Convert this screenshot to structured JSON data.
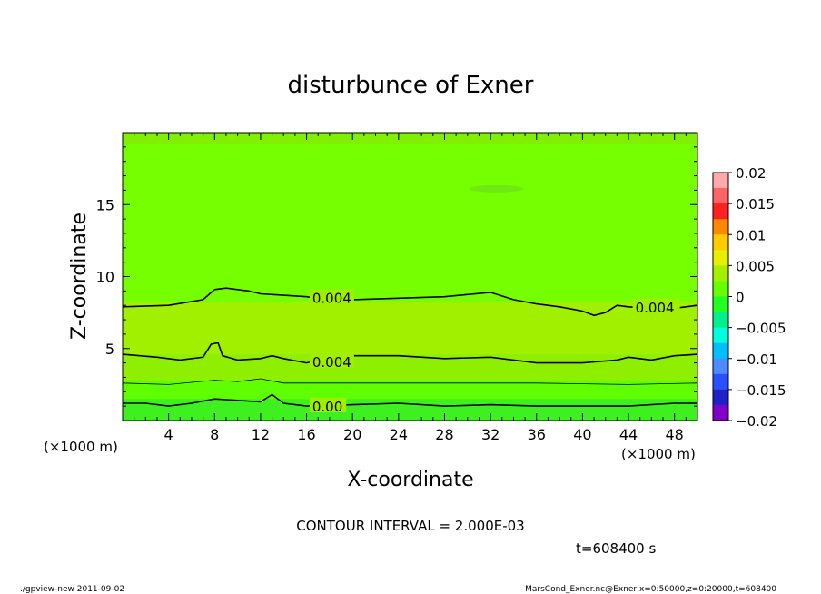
{
  "chart_data": {
    "type": "contour",
    "title": "disturbunce of Exner",
    "xlabel": "X-coordinate",
    "ylabel": "Z-coordinate",
    "x_unit": "(×1000 m)",
    "x_unit_right": "(×1000 m)",
    "xlim": [
      0,
      50
    ],
    "ylim": [
      0,
      20
    ],
    "xticks": [
      4,
      8,
      12,
      16,
      20,
      24,
      28,
      32,
      36,
      40,
      44,
      48
    ],
    "yticks": [
      5,
      10,
      15
    ],
    "contour_interval_text": "CONTOUR INTERVAL = 2.000E-03",
    "time_text": "t=608400 s",
    "footer_left": "./gpview-new   2011-09-02",
    "footer_right": "MarsCond_Exner.nc@Exner,x=0:50000,z=0:20000,t=608400",
    "colorbar": {
      "labels": [
        "0.02",
        "0.015",
        "0.01",
        "0.005",
        "0",
        "−0.005",
        "−0.01",
        "−0.015",
        "−0.02"
      ],
      "colors": [
        "#ffaaa8",
        "#ff6464",
        "#ff2020",
        "#ff8800",
        "#ffcc00",
        "#e6f000",
        "#a4f000",
        "#66ff00",
        "#22ff22",
        "#00f08c",
        "#00ffdd",
        "#00bfff",
        "#4b8bff",
        "#2a4fff",
        "#2020c8",
        "#8000c8"
      ]
    },
    "field_bands": [
      {
        "z_top": 20,
        "color": "#80f000"
      },
      {
        "z_top": 19.2,
        "color": "#76ff00"
      },
      {
        "z_top": 8.2,
        "color": "#a0f000"
      },
      {
        "z_top": 4.6,
        "color": "#8ef000"
      },
      {
        "z_top": 2.8,
        "color": "#60ff00"
      },
      {
        "z_top": 1.5,
        "color": "#3ff020"
      }
    ],
    "contours": [
      {
        "label": "0.004",
        "label_x": 16.5,
        "points": [
          [
            0,
            7.9
          ],
          [
            4,
            8.0
          ],
          [
            7,
            8.4
          ],
          [
            8,
            9.1
          ],
          [
            9,
            9.2
          ],
          [
            10,
            9.1
          ],
          [
            11,
            9.0
          ],
          [
            12,
            8.8
          ],
          [
            14,
            8.7
          ],
          [
            16,
            8.6
          ],
          [
            18,
            8.4
          ],
          [
            20,
            8.4
          ],
          [
            24,
            8.5
          ],
          [
            28,
            8.6
          ],
          [
            32,
            8.9
          ],
          [
            34,
            8.4
          ],
          [
            36,
            8.1
          ],
          [
            38,
            7.9
          ],
          [
            40,
            7.6
          ],
          [
            41,
            7.3
          ],
          [
            42,
            7.5
          ],
          [
            43,
            8.0
          ],
          [
            44,
            7.9
          ],
          [
            46,
            7.8
          ],
          [
            48,
            7.8
          ],
          [
            50,
            8.0
          ]
        ]
      },
      {
        "label": "0.004",
        "label_x": 16.5,
        "points": [
          [
            0,
            4.6
          ],
          [
            3,
            4.4
          ],
          [
            5,
            4.2
          ],
          [
            7,
            4.4
          ],
          [
            7.7,
            5.3
          ],
          [
            8.3,
            5.4
          ],
          [
            8.7,
            4.5
          ],
          [
            10,
            4.2
          ],
          [
            12,
            4.3
          ],
          [
            13,
            4.5
          ],
          [
            14,
            4.3
          ],
          [
            16,
            4.0
          ],
          [
            18,
            4.4
          ],
          [
            20,
            4.5
          ],
          [
            24,
            4.5
          ],
          [
            28,
            4.3
          ],
          [
            32,
            4.4
          ],
          [
            36,
            4.0
          ],
          [
            40,
            4.0
          ],
          [
            43,
            4.2
          ],
          [
            44,
            4.4
          ],
          [
            46,
            4.2
          ],
          [
            48,
            4.5
          ],
          [
            50,
            4.6
          ]
        ]
      },
      {
        "label": "",
        "label_x": 0,
        "points": [
          [
            0,
            2.6
          ],
          [
            4,
            2.5
          ],
          [
            8,
            2.8
          ],
          [
            10,
            2.7
          ],
          [
            12,
            2.9
          ],
          [
            14,
            2.6
          ],
          [
            20,
            2.6
          ],
          [
            28,
            2.6
          ],
          [
            36,
            2.6
          ],
          [
            44,
            2.5
          ],
          [
            50,
            2.6
          ]
        ]
      },
      {
        "label": "0.00",
        "label_x": 16.5,
        "points": [
          [
            0,
            1.2
          ],
          [
            2,
            1.2
          ],
          [
            4,
            1.0
          ],
          [
            6,
            1.2
          ],
          [
            8,
            1.5
          ],
          [
            10,
            1.4
          ],
          [
            12,
            1.3
          ],
          [
            13,
            1.8
          ],
          [
            14,
            1.2
          ],
          [
            16,
            1.0
          ],
          [
            20,
            1.1
          ],
          [
            24,
            1.2
          ],
          [
            28,
            1.0
          ],
          [
            32,
            1.1
          ],
          [
            36,
            1.0
          ],
          [
            40,
            1.0
          ],
          [
            44,
            1.0
          ],
          [
            48,
            1.2
          ],
          [
            50,
            1.2
          ]
        ]
      }
    ]
  }
}
